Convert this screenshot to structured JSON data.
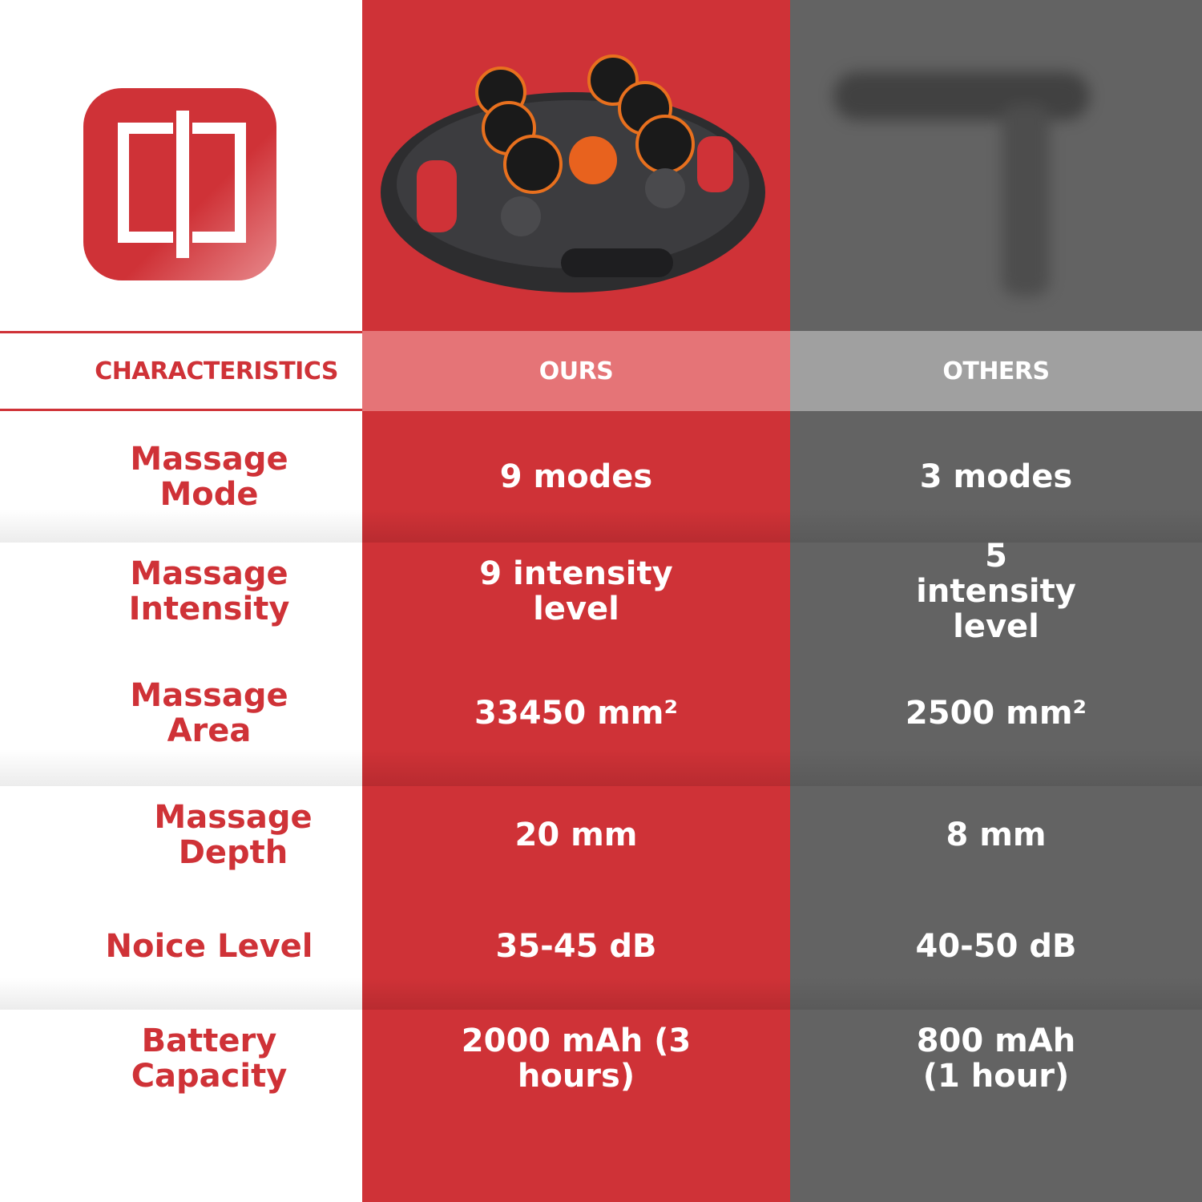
{
  "colors": {
    "brand_red": "#cf3237",
    "ours_header": "#e57477",
    "others": "#636363",
    "others_header": "#a0a0a0"
  },
  "logo": {
    "icon": "cp-logo-icon",
    "text": "cp"
  },
  "header": {
    "characteristics": "CHARACTERISTICS",
    "ours": "OURS",
    "others": "OTHERS"
  },
  "rows": [
    {
      "label": "Massage Mode",
      "ours": "9 modes",
      "others": "3 modes"
    },
    {
      "label": "Massage Intensity",
      "ours": "9 intensity level",
      "others": "5 intensity level"
    },
    {
      "label": "Massage Area",
      "ours": "33450 mm²",
      "others": "2500 mm²"
    },
    {
      "label": "Massage Depth",
      "ours": "20 mm",
      "others": "8 mm"
    },
    {
      "label": "Noice Level",
      "ours": "35-45 dB",
      "others": "40-50 dB"
    },
    {
      "label": "Battery Capacity",
      "ours": "2000 mAh (3 hours)",
      "others": "800 mAh (1 hour)"
    }
  ]
}
